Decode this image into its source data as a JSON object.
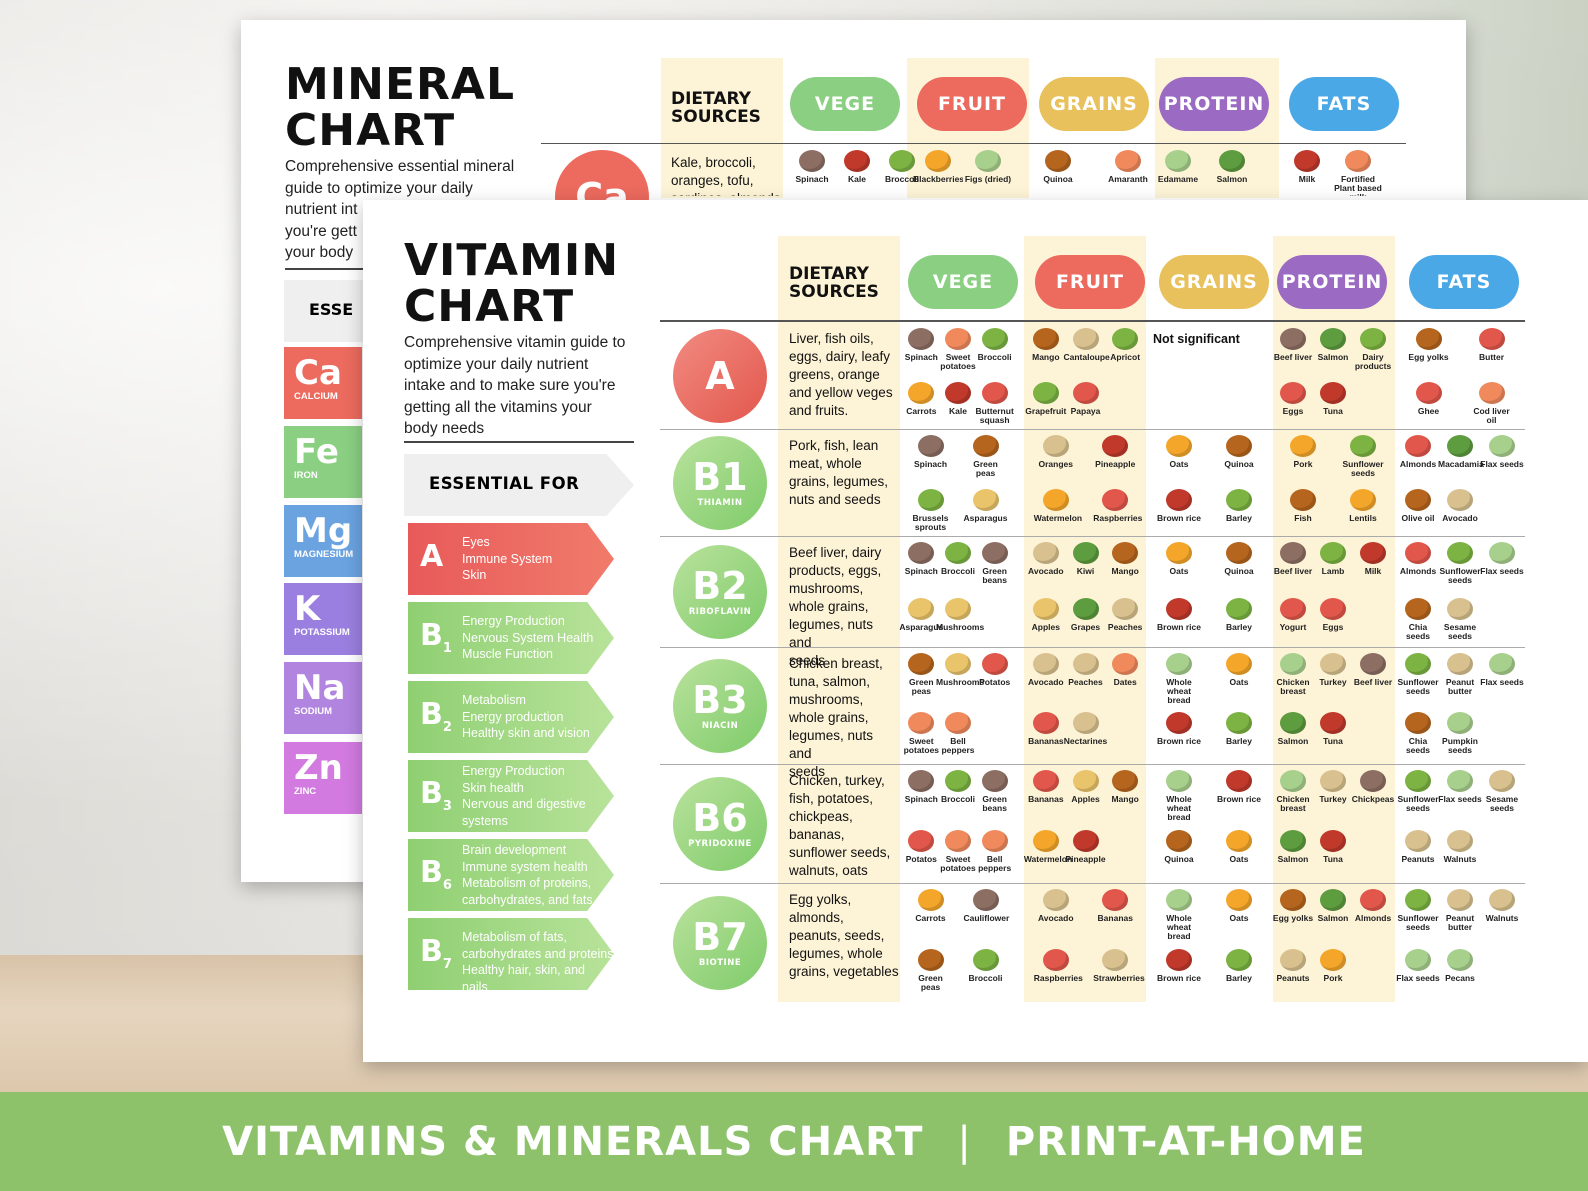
{
  "banner": {
    "left": "VITAMINS & MINERALS CHART",
    "separator": "|",
    "right": "PRINT-AT-HOME"
  },
  "colors": {
    "red": "#ec6a5e",
    "green": "#8bcf83",
    "yellow": "#e8c15c",
    "purple": "#9b6bc4",
    "blue": "#4aa8e6",
    "cream": "#fdf3d6"
  },
  "mineral": {
    "title_line1": "MINERAL",
    "title_line2": "CHART",
    "desc_lines": [
      "Comprehensive essential mineral",
      "guide to optimize your daily",
      "nutrient int",
      "you're gett",
      "your body"
    ],
    "essential_label": "ESSE",
    "headers": {
      "sources": "DIETARY SOURCES",
      "vege": "VEGE",
      "fruit": "FRUIT",
      "grains": "GRAINS",
      "protein": "PROTEIN",
      "fats": "FATS"
    },
    "row1": {
      "circle": "Ca",
      "sources": "Kale, broccoli, oranges, tofu, sardines, almonds",
      "foods": [
        "Spinach",
        "Kale",
        "Broccoli",
        "Blackberries",
        "Figs (dried)",
        "Quinoa",
        "Amaranth",
        "Edamame",
        "Salmon",
        "Milk",
        "Fortified Plant based milk"
      ]
    },
    "minerals": [
      {
        "sym": "Ca",
        "name": "CALCIUM",
        "color": "#ec6a5e"
      },
      {
        "sym": "Fe",
        "name": "IRON",
        "color": "#8bcf83"
      },
      {
        "sym": "Mg",
        "name": "MAGNESIUM",
        "color": "#6aa3e0"
      },
      {
        "sym": "K",
        "name": "POTASSIUM",
        "color": "#9b7fe0"
      },
      {
        "sym": "Na",
        "name": "SODIUM",
        "color": "#b184e0"
      },
      {
        "sym": "Zn",
        "name": "ZINC",
        "color": "#d27ae0"
      }
    ]
  },
  "vitamin": {
    "title_line1": "VITAMIN",
    "title_line2": "CHART",
    "desc_lines": [
      "Comprehensive vitamin guide to",
      "optimize your daily nutrient",
      "intake and to make sure you're",
      "getting all the vitamins your",
      "body needs"
    ],
    "essential_label": "ESSENTIAL FOR",
    "headers": {
      "sources_l1": "DIETARY",
      "sources_l2": "SOURCES",
      "vege": "VEGE",
      "fruit": "FRUIT",
      "grains": "GRAINS",
      "protein": "PROTEIN",
      "fats": "FATS"
    },
    "essentials": [
      {
        "letter": "A",
        "sub": "",
        "lines": [
          "Eyes",
          "Immune System",
          "Skin"
        ]
      },
      {
        "letter": "B",
        "sub": "1",
        "lines": [
          "Energy Production",
          "Nervous System Health",
          "Muscle Function"
        ]
      },
      {
        "letter": "B",
        "sub": "2",
        "lines": [
          "Metabolism",
          "Energy production",
          "Healthy skin and vision"
        ]
      },
      {
        "letter": "B",
        "sub": "3",
        "lines": [
          "Energy Production",
          "Skin health",
          "Nervous and digestive",
          "systems"
        ]
      },
      {
        "letter": "B",
        "sub": "6",
        "lines": [
          "Brain development",
          "Immune system health",
          "Metabolism of proteins,",
          "carbohydrates, and fats"
        ]
      },
      {
        "letter": "B",
        "sub": "7",
        "lines": [
          "Metabolism of fats,",
          "carbohydrates and proteins",
          "Healthy hair, skin, and nails"
        ]
      }
    ],
    "rows": [
      {
        "big": "A",
        "small": "",
        "src": [
          "Liver, fish oils,",
          "eggs, dairy, leafy",
          "greens, orange",
          "and yellow veges",
          "and fruits."
        ],
        "vege": [
          "Spinach",
          "Sweet potatoes",
          "Broccoli",
          "Carrots",
          "Kale",
          "Butternut squash"
        ],
        "fruit": [
          "Mango",
          "Cantaloupe",
          "Apricot",
          "Grapefruit",
          "Papaya"
        ],
        "grains": [],
        "grains_note": "Not significant",
        "protein": [
          "Beef liver",
          "Salmon",
          "Dairy products",
          "Eggs",
          "Tuna"
        ],
        "fats": [
          "Egg yolks",
          "Butter",
          "Ghee",
          "Cod liver oil"
        ]
      },
      {
        "big": "B1",
        "small": "THIAMIN",
        "src": [
          "Pork, fish, lean",
          "meat, whole",
          "grains, legumes,",
          "nuts and seeds"
        ],
        "vege": [
          "Spinach",
          "Green peas",
          "Brussels sprouts",
          "Asparagus"
        ],
        "fruit": [
          "Oranges",
          "Pineapple",
          "Watermelon",
          "Raspberries"
        ],
        "grains": [
          "Oats",
          "Quinoa",
          "Brown rice",
          "Barley"
        ],
        "grains_note": "",
        "protein": [
          "Pork",
          "Sunflower seeds",
          "Fish",
          "Lentils"
        ],
        "fats": [
          "Almonds",
          "Macadamia",
          "Flax seeds",
          "Olive oil",
          "Avocado"
        ]
      },
      {
        "big": "B2",
        "small": "RIBOFLAVIN",
        "src": [
          "Beef liver, dairy",
          "products, eggs,",
          "mushrooms,",
          "whole grains,",
          "legumes, nuts and",
          "seeds"
        ],
        "vege": [
          "Spinach",
          "Broccoli",
          "Green beans",
          "Asparagus",
          "Mushrooms"
        ],
        "fruit": [
          "Avocado",
          "Kiwi",
          "Mango",
          "Apples",
          "Grapes",
          "Peaches"
        ],
        "grains": [
          "Oats",
          "Quinoa",
          "Brown rice",
          "Barley"
        ],
        "grains_note": "",
        "protein": [
          "Beef liver",
          "Lamb",
          "Milk",
          "Yogurt",
          "Eggs"
        ],
        "fats": [
          "Almonds",
          "Sunflower seeds",
          "Flax seeds",
          "Chia seeds",
          "Sesame seeds"
        ]
      },
      {
        "big": "B3",
        "small": "NIACIN",
        "src": [
          "Chicken breast,",
          "tuna, salmon,",
          "mushrooms,",
          "whole grains,",
          "legumes, nuts and",
          "seeds"
        ],
        "vege": [
          "Green peas",
          "Mushrooms",
          "Potatos",
          "Sweet potatoes",
          "Bell peppers"
        ],
        "fruit": [
          "Avocado",
          "Peaches",
          "Dates",
          "Bananas",
          "Nectarines"
        ],
        "grains": [
          "Whole wheat bread",
          "Oats",
          "Brown rice",
          "Barley"
        ],
        "grains_note": "",
        "protein": [
          "Chicken breast",
          "Turkey",
          "Beef liver",
          "Salmon",
          "Tuna"
        ],
        "fats": [
          "Sunflower seeds",
          "Peanut butter",
          "Flax seeds",
          "Chia seeds",
          "Pumpkin seeds"
        ]
      },
      {
        "big": "B6",
        "small": "PYRIDOXINE",
        "src": [
          "Chicken, turkey,",
          "fish, potatoes,",
          "chickpeas,",
          "bananas,",
          "sunflower seeds,",
          "walnuts, oats"
        ],
        "vege": [
          "Spinach",
          "Broccoli",
          "Green beans",
          "Potatos",
          "Sweet potatoes",
          "Bell peppers"
        ],
        "fruit": [
          "Bananas",
          "Apples",
          "Mango",
          "Watermelon",
          "Pineapple"
        ],
        "grains": [
          "Whole wheat bread",
          "Brown rice",
          "Quinoa",
          "Oats"
        ],
        "grains_note": "",
        "protein": [
          "Chicken breast",
          "Turkey",
          "Chickpeas",
          "Salmon",
          "Tuna"
        ],
        "fats": [
          "Sunflower seeds",
          "Flax seeds",
          "Sesame seeds",
          "Peanuts",
          "Walnuts"
        ]
      },
      {
        "big": "B7",
        "small": "BIOTINE",
        "src": [
          "Egg yolks,",
          "almonds,",
          "peanuts, seeds,",
          "legumes, whole",
          "grains, vegetables"
        ],
        "vege": [
          "Carrots",
          "Cauliflower",
          "Green peas",
          "Broccoli"
        ],
        "fruit": [
          "Avocado",
          "Bananas",
          "Raspberries",
          "Strawberries"
        ],
        "grains": [
          "Whole wheat bread",
          "Oats",
          "Brown rice",
          "Barley"
        ],
        "grains_note": "",
        "protein": [
          "Egg yolks",
          "Salmon",
          "Almonds",
          "Peanuts",
          "Pork"
        ],
        "fats": [
          "Sunflower seeds",
          "Peanut butter",
          "Walnuts",
          "Flax seeds",
          "Pecans"
        ]
      }
    ]
  }
}
